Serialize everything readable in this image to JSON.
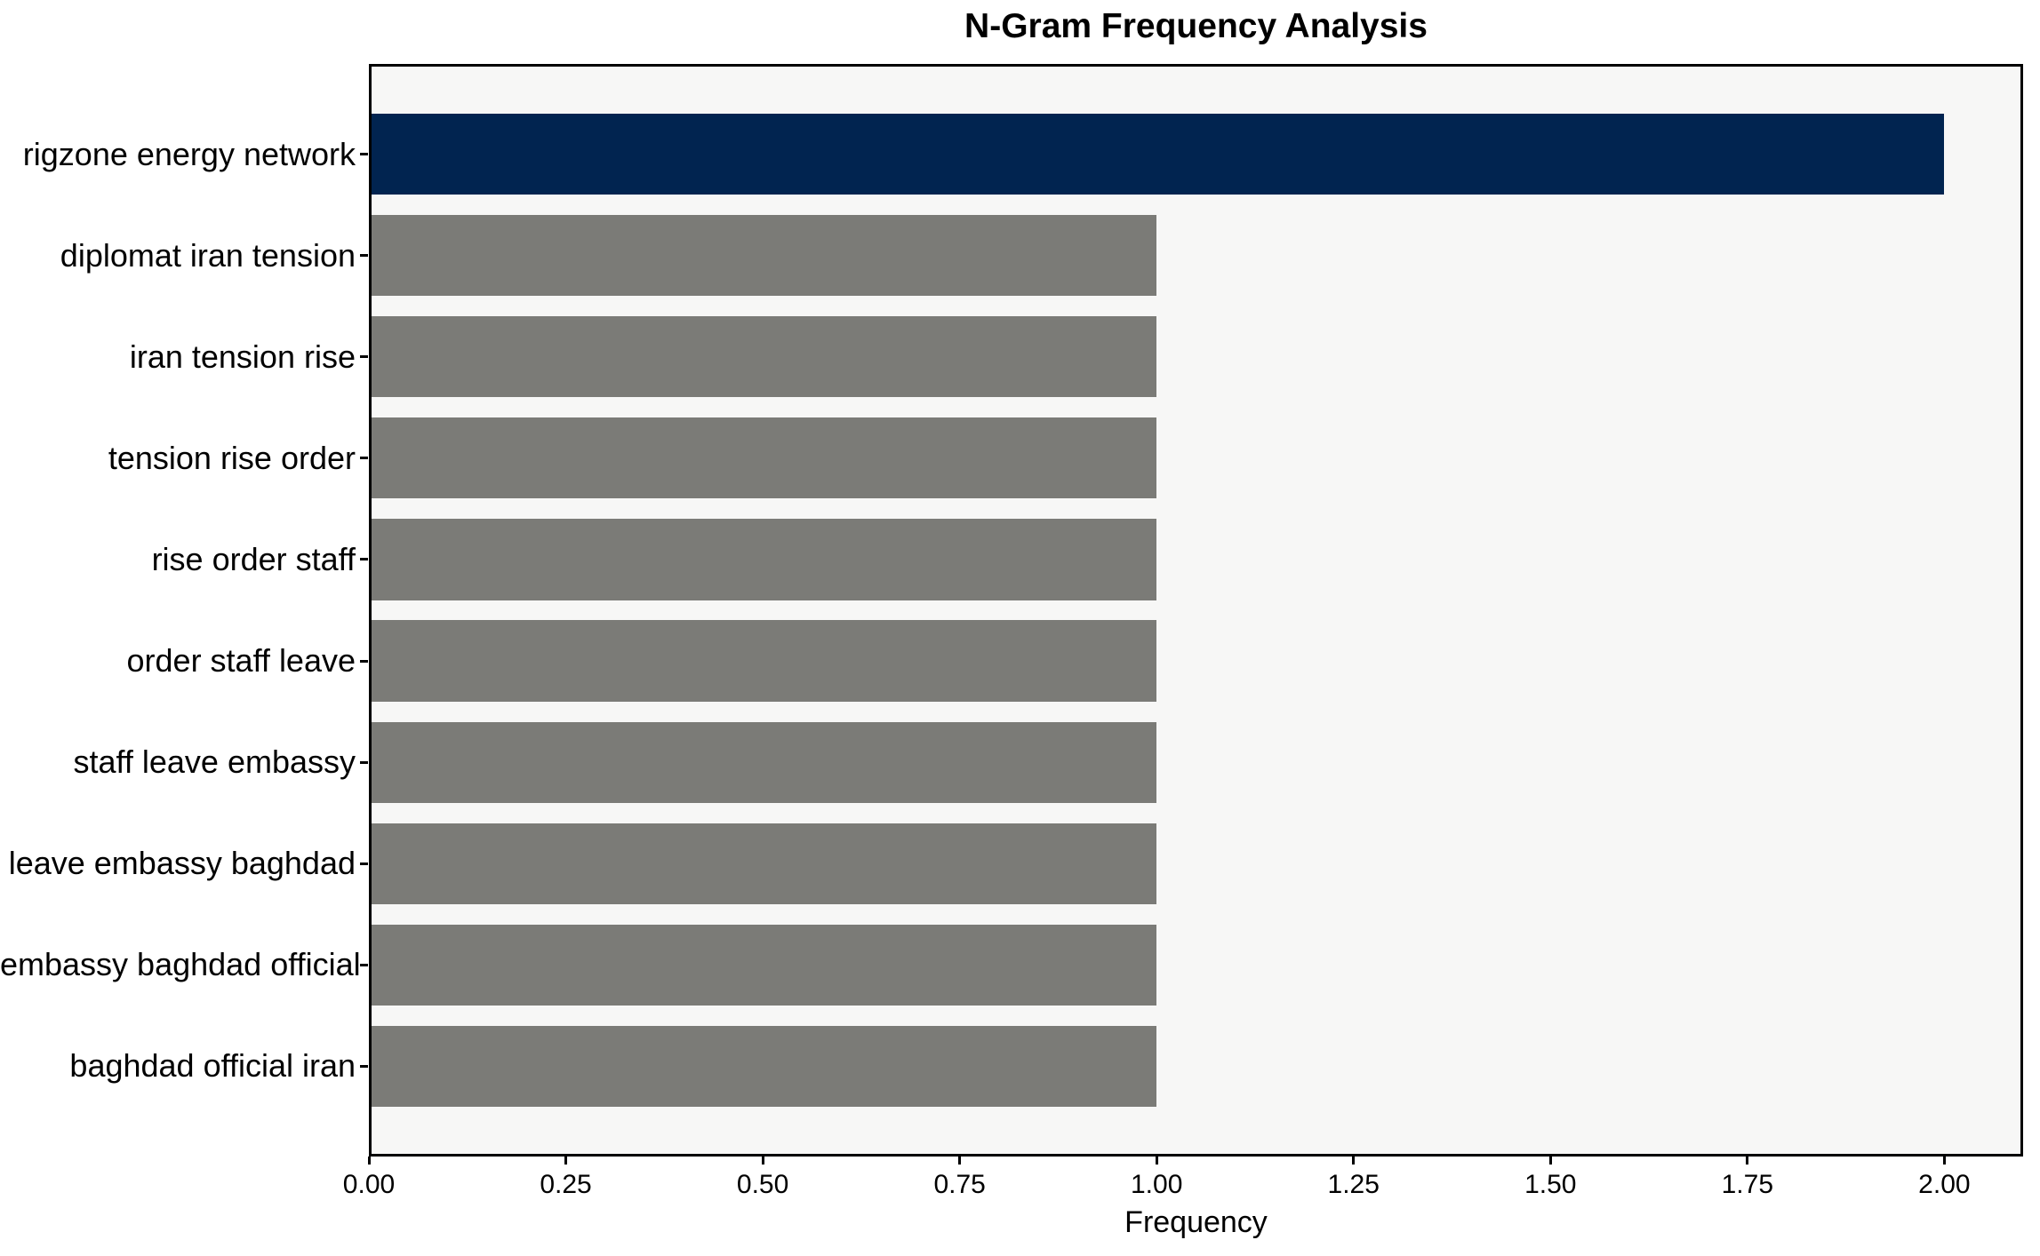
{
  "chart_data": {
    "type": "bar",
    "orientation": "horizontal",
    "title": "N-Gram Frequency Analysis",
    "xlabel": "Frequency",
    "ylabel": "",
    "categories": [
      "rigzone energy network",
      "diplomat iran tension",
      "iran tension rise",
      "tension rise order",
      "rise order staff",
      "order staff leave",
      "staff leave embassy",
      "leave embassy baghdad",
      "embassy baghdad official",
      "baghdad official iran"
    ],
    "values": [
      2.0,
      1.0,
      1.0,
      1.0,
      1.0,
      1.0,
      1.0,
      1.0,
      1.0,
      1.0
    ],
    "bar_colors": [
      "#012450",
      "#7b7b77",
      "#7b7b77",
      "#7b7b77",
      "#7b7b77",
      "#7b7b77",
      "#7b7b77",
      "#7b7b77",
      "#7b7b77",
      "#7b7b77"
    ],
    "xlim": [
      0,
      2.1
    ],
    "xtick_values": [
      0,
      0.25,
      0.5,
      0.75,
      1.0,
      1.25,
      1.5,
      1.75,
      2.0
    ],
    "xtick_labels": [
      "0.00",
      "0.25",
      "0.50",
      "0.75",
      "1.00",
      "1.25",
      "1.50",
      "1.75",
      "2.00"
    ],
    "grid": false,
    "legend": null,
    "colors": {
      "highlight_bar": "#012450",
      "base_bar": "#7b7b77",
      "plot_background": "#f7f7f6",
      "figure_background": "#ffffff",
      "axes_edge": "#000000",
      "text": "#000000"
    }
  }
}
